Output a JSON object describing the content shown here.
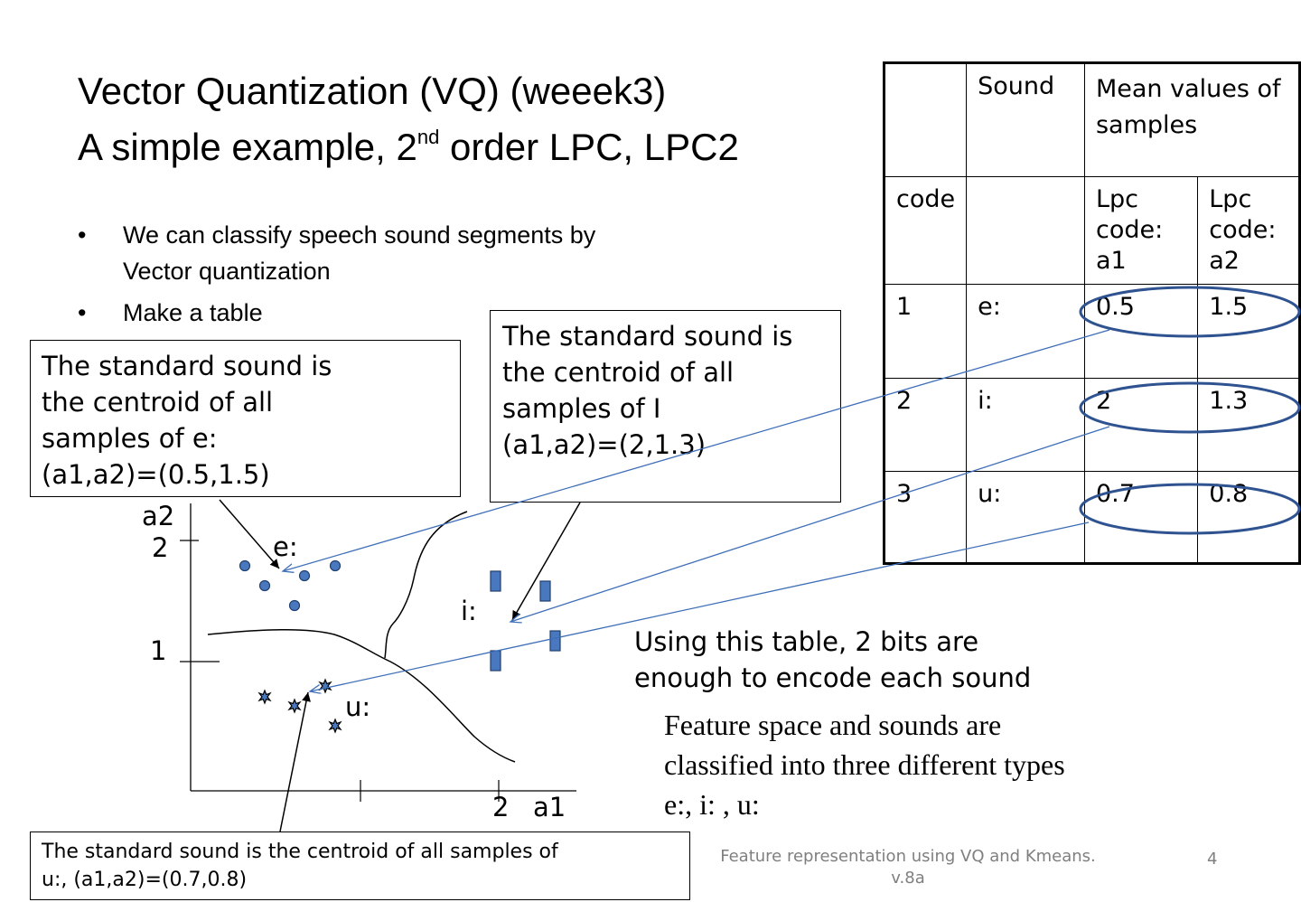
{
  "title": {
    "line1": "Vector Quantization (VQ) (weeek3)",
    "line2_pre": "A simple example, 2",
    "line2_sup": "nd",
    "line2_post": " order LPC,  LPC2"
  },
  "bullets": [
    {
      "symbol": "•",
      "text": "We can classify speech sound segments by Vector quantization"
    },
    {
      "symbol": "•",
      "text": "Make a table"
    }
  ],
  "callouts": {
    "e_box": "The standard sound is\nthe centroid of all\nsamples of e:\n(a1,a2)=(0.5,1.5)",
    "i_box": "The standard sound is\nthe centroid of all\nsamples of I\n(a1,a2)=(2,1.3)",
    "u_box": "The standard sound is the centroid of all samples of\nu:, (a1,a2)=(0.7,0.8)"
  },
  "table": {
    "header1": {
      "c1": "",
      "c2": "Sound",
      "c3": "Mean values of samples"
    },
    "header2": {
      "c1": "code",
      "c2": "",
      "c3": "Lpc code: a1",
      "c4": "Lpc code: a2"
    },
    "rows": [
      {
        "code": "1",
        "sound": "e:",
        "a1": "0.5",
        "a2": "1.5"
      },
      {
        "code": "2",
        "sound": "i:",
        "a1": "2",
        "a2": "1.3"
      },
      {
        "code": "3",
        "sound": "u:",
        "a1": "0.7",
        "a2": "0.8"
      }
    ]
  },
  "plot": {
    "y_axis_label": "a2",
    "x_axis_label": "a1",
    "y_tick_2": "2",
    "y_tick_1": "1",
    "x_tick_2": "2",
    "label_e": "e:",
    "label_i": "i:",
    "label_u": "u:"
  },
  "note": "Using this table, 2 bits are\nenough to encode each sound",
  "feature_text": "Feature space and sounds are\nclassified into three different types\ne:, i: , u:",
  "footer": "Feature representation using VQ and Kmeans.\nv.8a",
  "page_number": "4",
  "colors": {
    "marker_fill": "#4a78be",
    "marker_stroke": "#1f3f6e",
    "ellipse": "#2e5390",
    "arrow_blue": "#3f6fb8"
  }
}
